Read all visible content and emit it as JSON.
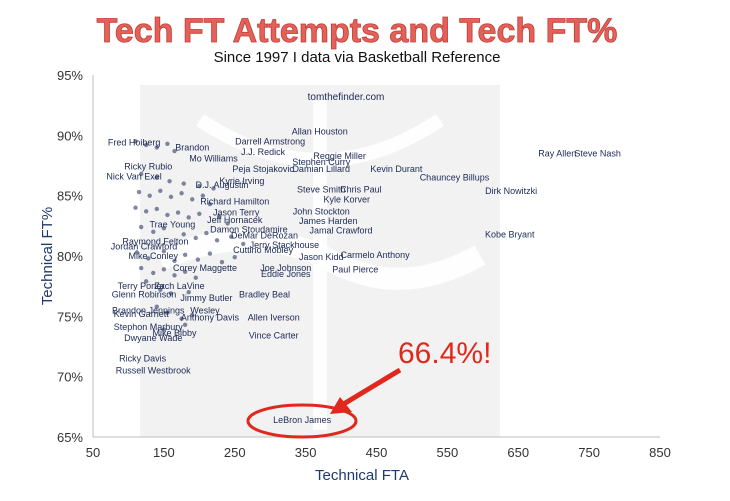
{
  "chart_data": {
    "type": "scatter",
    "title": "Tech FT Attempts and Tech FT%",
    "subtitle": "Since 1997 I data via Basketball Reference",
    "xlabel": "Technical FTA",
    "ylabel": "Technical FT%",
    "xlim": [
      50,
      850
    ],
    "ylim": [
      65,
      95
    ],
    "xticks": [
      50,
      150,
      250,
      350,
      450,
      550,
      650,
      750,
      850
    ],
    "yticks": [
      65,
      70,
      75,
      80,
      85,
      90,
      95
    ],
    "x_tick_labels": [
      "50",
      "150",
      "250",
      "350",
      "450",
      "550",
      "650",
      "750",
      "850"
    ],
    "y_tick_labels": [
      "65%",
      "70%",
      "75%",
      "80%",
      "85%",
      "90%",
      "95%"
    ],
    "grid": false,
    "watermark": "tomthefinder.com",
    "annotation": "66.4%!",
    "points": [
      {
        "name": "Ray Allen",
        "x": 705,
        "y": 88.5
      },
      {
        "name": "Steve Nash",
        "x": 762,
        "y": 88.5
      },
      {
        "name": "Allan Houston",
        "x": 370,
        "y": 90.3
      },
      {
        "name": "Darrell Armstrong",
        "x": 300,
        "y": 89.5
      },
      {
        "name": "J.J. Redick",
        "x": 290,
        "y": 88.6
      },
      {
        "name": "Reggie Miller",
        "x": 398,
        "y": 88.3
      },
      {
        "name": "Mo Williams",
        "x": 220,
        "y": 88.1
      },
      {
        "name": "Stephen Curry",
        "x": 372,
        "y": 87.8
      },
      {
        "name": "Peja Stojakovic",
        "x": 290,
        "y": 87.2
      },
      {
        "name": "Damian Lillard",
        "x": 372,
        "y": 87.2
      },
      {
        "name": "Kevin Durant",
        "x": 478,
        "y": 87.2
      },
      {
        "name": "Chauncey Billups",
        "x": 560,
        "y": 86.5
      },
      {
        "name": "Kyrie Irving",
        "x": 260,
        "y": 86.2
      },
      {
        "name": "Chris Paul",
        "x": 428,
        "y": 85.5
      },
      {
        "name": "Steve Smith",
        "x": 372,
        "y": 85.5
      },
      {
        "name": "Kyle Korver",
        "x": 408,
        "y": 84.7
      },
      {
        "name": "Dirk Nowitzki",
        "x": 640,
        "y": 85.4
      },
      {
        "name": "Fred Hoiberg",
        "x": 108,
        "y": 89.4
      },
      {
        "name": "Brandon",
        "x": 190,
        "y": 89.0
      },
      {
        "name": "Ricky Rubio",
        "x": 128,
        "y": 87.4
      },
      {
        "name": "Nick Van Exel",
        "x": 108,
        "y": 86.6
      },
      {
        "name": "D.J. Augustin",
        "x": 232,
        "y": 85.9
      },
      {
        "name": "Richard Hamilton",
        "x": 250,
        "y": 84.5
      },
      {
        "name": "Jason Terry",
        "x": 252,
        "y": 83.6
      },
      {
        "name": "Jeff Hornacek",
        "x": 250,
        "y": 83.0
      },
      {
        "name": "John Stockton",
        "x": 372,
        "y": 83.7
      },
      {
        "name": "James Harden",
        "x": 382,
        "y": 82.9
      },
      {
        "name": "Jamal Crawford",
        "x": 400,
        "y": 82.1
      },
      {
        "name": "Kobe Bryant",
        "x": 638,
        "y": 81.8
      },
      {
        "name": "Trae Young",
        "x": 162,
        "y": 82.6
      },
      {
        "name": "Damon Stoudamire",
        "x": 270,
        "y": 82.2
      },
      {
        "name": "DeMar DeRozan",
        "x": 292,
        "y": 81.7
      },
      {
        "name": "Jerry Stackhouse",
        "x": 320,
        "y": 80.9
      },
      {
        "name": "Cuttino Mobley",
        "x": 290,
        "y": 80.5
      },
      {
        "name": "Jason Kidd",
        "x": 372,
        "y": 79.9
      },
      {
        "name": "Carmelo Anthony",
        "x": 448,
        "y": 80.1
      },
      {
        "name": "Paul Pierce",
        "x": 420,
        "y": 78.9
      },
      {
        "name": "Joe Johnson",
        "x": 322,
        "y": 79.0
      },
      {
        "name": "Eddie Jones",
        "x": 322,
        "y": 78.5
      },
      {
        "name": "Raymond Felton",
        "x": 138,
        "y": 81.2
      },
      {
        "name": "Jordan Crawford",
        "x": 122,
        "y": 80.8
      },
      {
        "name": "Mike Conley",
        "x": 135,
        "y": 80.0
      },
      {
        "name": "Corey Maggette",
        "x": 208,
        "y": 79.0
      },
      {
        "name": "Terry Porter",
        "x": 118,
        "y": 77.5
      },
      {
        "name": "Zach LaVine",
        "x": 172,
        "y": 77.5
      },
      {
        "name": "Glenn Robinson",
        "x": 122,
        "y": 76.8
      },
      {
        "name": "Jimmy Butler",
        "x": 210,
        "y": 76.5
      },
      {
        "name": "Bradley Beal",
        "x": 292,
        "y": 76.8
      },
      {
        "name": "Brandon Jennings",
        "x": 128,
        "y": 75.5
      },
      {
        "name": "Wesley",
        "x": 208,
        "y": 75.5
      },
      {
        "name": "Kevin Garnett",
        "x": 118,
        "y": 75.2
      },
      {
        "name": "Anthony Davis",
        "x": 215,
        "y": 74.9
      },
      {
        "name": "Allen Iverson",
        "x": 305,
        "y": 74.9
      },
      {
        "name": "Stephon Marbury",
        "x": 128,
        "y": 74.1
      },
      {
        "name": "Mike Bibby",
        "x": 165,
        "y": 73.6
      },
      {
        "name": "Dwyane Wade",
        "x": 135,
        "y": 73.2
      },
      {
        "name": "Vince Carter",
        "x": 305,
        "y": 73.4
      },
      {
        "name": "Ricky Davis",
        "x": 120,
        "y": 71.5
      },
      {
        "name": "Russell Westbrook",
        "x": 135,
        "y": 70.5
      },
      {
        "name": "LeBron James",
        "x": 345,
        "y": 66.4
      }
    ],
    "cluster_points": [
      {
        "x": 110,
        "y": 89.5
      },
      {
        "x": 125,
        "y": 89.2
      },
      {
        "x": 140,
        "y": 89.0
      },
      {
        "x": 155,
        "y": 89.3
      },
      {
        "x": 165,
        "y": 88.7
      },
      {
        "x": 118,
        "y": 86.8
      },
      {
        "x": 140,
        "y": 86.5
      },
      {
        "x": 158,
        "y": 86.2
      },
      {
        "x": 178,
        "y": 86.0
      },
      {
        "x": 200,
        "y": 85.8
      },
      {
        "x": 220,
        "y": 85.6
      },
      {
        "x": 115,
        "y": 85.3
      },
      {
        "x": 130,
        "y": 85.0
      },
      {
        "x": 145,
        "y": 85.4
      },
      {
        "x": 160,
        "y": 84.9
      },
      {
        "x": 175,
        "y": 85.2
      },
      {
        "x": 190,
        "y": 84.7
      },
      {
        "x": 205,
        "y": 85.0
      },
      {
        "x": 215,
        "y": 84.3
      },
      {
        "x": 110,
        "y": 84.0
      },
      {
        "x": 125,
        "y": 83.7
      },
      {
        "x": 140,
        "y": 83.9
      },
      {
        "x": 155,
        "y": 83.4
      },
      {
        "x": 170,
        "y": 83.6
      },
      {
        "x": 185,
        "y": 83.2
      },
      {
        "x": 200,
        "y": 83.5
      },
      {
        "x": 228,
        "y": 83.3
      },
      {
        "x": 240,
        "y": 82.7
      },
      {
        "x": 118,
        "y": 82.4
      },
      {
        "x": 135,
        "y": 82.0
      },
      {
        "x": 150,
        "y": 82.3
      },
      {
        "x": 178,
        "y": 81.8
      },
      {
        "x": 195,
        "y": 81.5
      },
      {
        "x": 210,
        "y": 81.9
      },
      {
        "x": 225,
        "y": 81.3
      },
      {
        "x": 245,
        "y": 81.6
      },
      {
        "x": 262,
        "y": 81.0
      },
      {
        "x": 112,
        "y": 80.3
      },
      {
        "x": 128,
        "y": 79.8
      },
      {
        "x": 150,
        "y": 80.4
      },
      {
        "x": 165,
        "y": 79.6
      },
      {
        "x": 180,
        "y": 80.1
      },
      {
        "x": 198,
        "y": 79.7
      },
      {
        "x": 215,
        "y": 80.2
      },
      {
        "x": 232,
        "y": 79.5
      },
      {
        "x": 250,
        "y": 79.9
      },
      {
        "x": 118,
        "y": 79.0
      },
      {
        "x": 135,
        "y": 78.6
      },
      {
        "x": 150,
        "y": 78.9
      },
      {
        "x": 165,
        "y": 78.4
      },
      {
        "x": 180,
        "y": 78.7
      },
      {
        "x": 195,
        "y": 78.2
      },
      {
        "x": 125,
        "y": 77.9
      },
      {
        "x": 145,
        "y": 77.2
      },
      {
        "x": 160,
        "y": 76.9
      },
      {
        "x": 185,
        "y": 77.0
      },
      {
        "x": 140,
        "y": 75.8
      },
      {
        "x": 155,
        "y": 75.3
      },
      {
        "x": 175,
        "y": 74.8
      },
      {
        "x": 190,
        "y": 75.1
      },
      {
        "x": 150,
        "y": 73.9
      },
      {
        "x": 180,
        "y": 74.3
      }
    ]
  }
}
